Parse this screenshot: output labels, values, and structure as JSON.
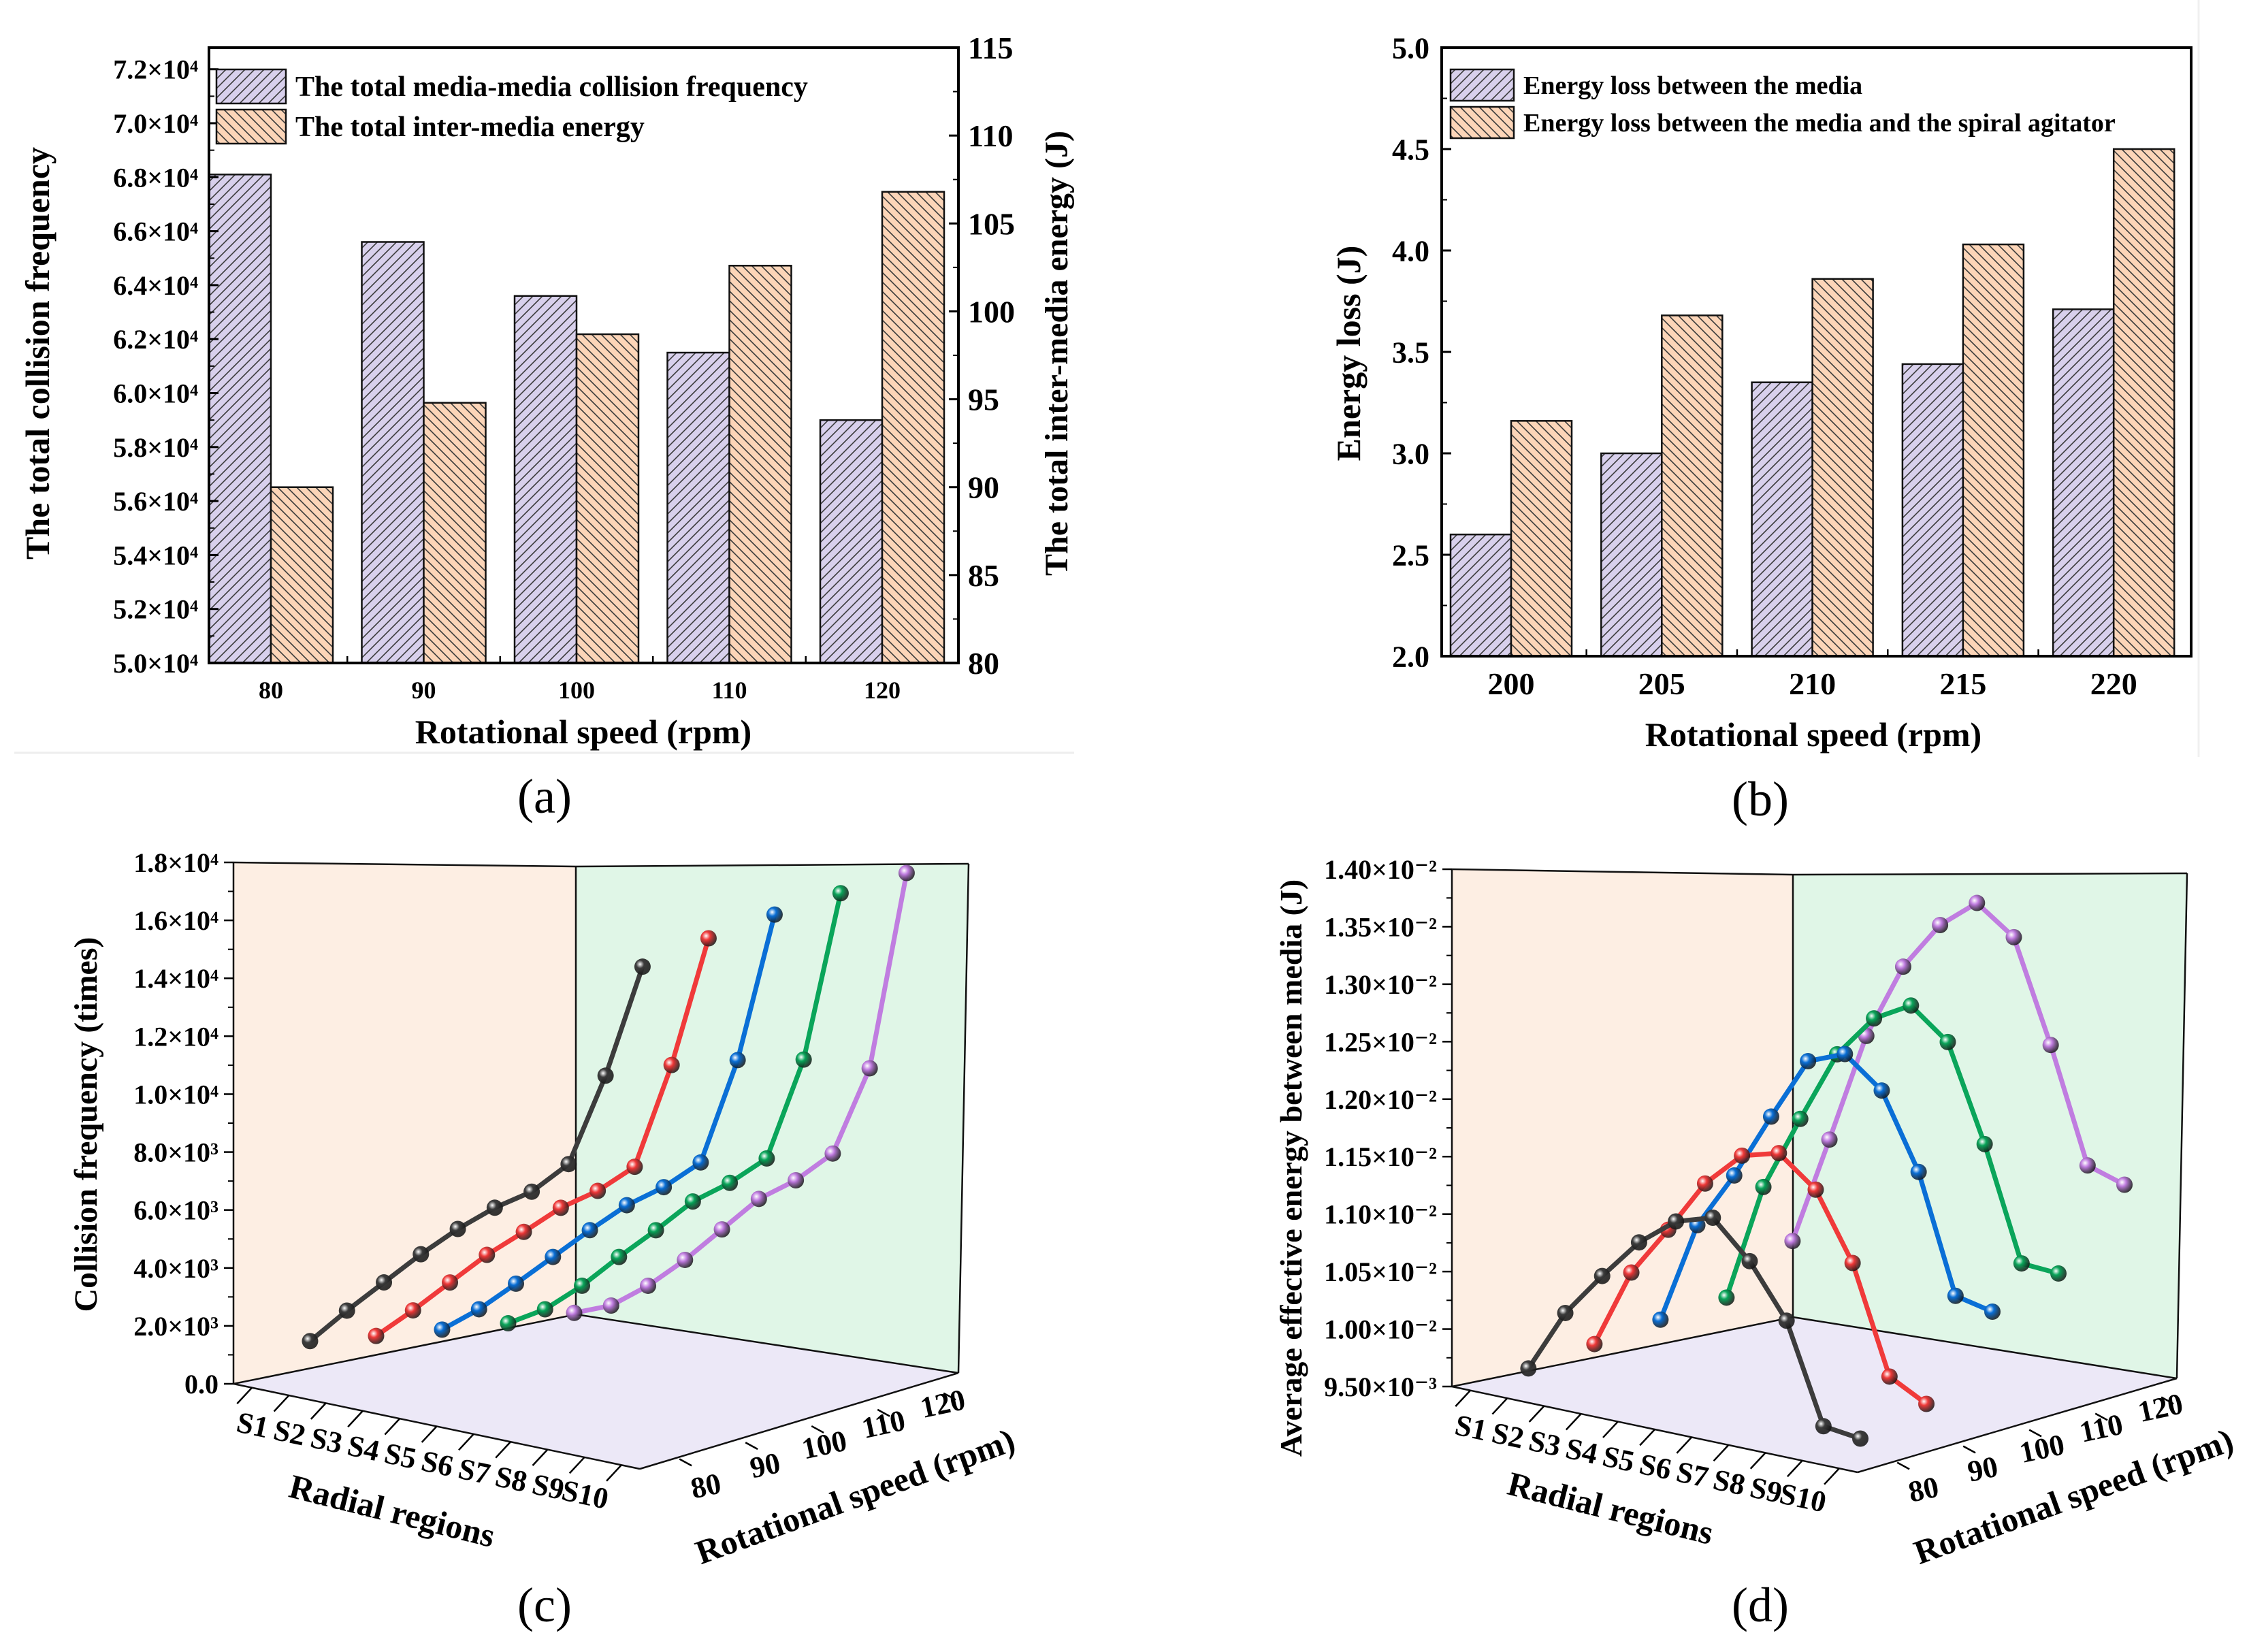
{
  "figure": {
    "panel_labels": [
      "(a)",
      "(b)",
      "(c)",
      "(d)"
    ]
  },
  "chart_data": [
    {
      "type": "bar",
      "categories": [
        "80",
        "90",
        "100",
        "110",
        "120"
      ],
      "xlabel": "Rotational speed (rpm)",
      "ylabel": "The total collision frequency",
      "y2label": "The total inter-media energy (J)",
      "ylim": [
        50000,
        72800
      ],
      "y2lim": [
        80,
        115
      ],
      "yticks": [
        50000,
        52000,
        54000,
        56000,
        58000,
        60000,
        62000,
        64000,
        66000,
        68000,
        70000,
        72000
      ],
      "ytick_labels": [
        "5.0×10⁴",
        "5.2×10⁴",
        "5.4×10⁴",
        "5.6×10⁴",
        "5.8×10⁴",
        "6.0×10⁴",
        "6.2×10⁴",
        "6.4×10⁴",
        "6.6×10⁴",
        "6.8×10⁴",
        "7.0×10⁴",
        "7.2×10⁴"
      ],
      "y2ticks": [
        80,
        85,
        90,
        95,
        100,
        105,
        110,
        115
      ],
      "y2tick_labels": [
        "80",
        "85",
        "90",
        "95",
        "100",
        "105",
        "110",
        "115"
      ],
      "legend_position": "top-left",
      "grid": false,
      "series": [
        {
          "name": "The total media-media collision frequency",
          "axis": "left",
          "color": "#D8D0EC",
          "hatch": "/",
          "values": [
            68100,
            65600,
            63600,
            61500,
            59000
          ]
        },
        {
          "name": "The total inter-media energy",
          "axis": "right",
          "color": "#FCD5B8",
          "hatch": "\\",
          "values": [
            90.0,
            94.8,
            98.7,
            102.6,
            106.8
          ]
        }
      ]
    },
    {
      "type": "bar",
      "categories": [
        "200",
        "205",
        "210",
        "215",
        "220"
      ],
      "xlabel": "Rotational speed (rpm)",
      "ylabel": "Energy loss (J)",
      "ylim": [
        2.0,
        5.0
      ],
      "yticks": [
        2.0,
        2.5,
        3.0,
        3.5,
        4.0,
        4.5,
        5.0
      ],
      "ytick_labels": [
        "2.0",
        "2.5",
        "3.0",
        "3.5",
        "4.0",
        "4.5",
        "5.0"
      ],
      "legend_position": "top-left",
      "grid": false,
      "series": [
        {
          "name": "Energy loss between the media",
          "color": "#D8D0EC",
          "hatch": "/",
          "values": [
            2.6,
            3.0,
            3.35,
            3.44,
            3.71
          ]
        },
        {
          "name": "Energy loss between the media and the spiral agitator",
          "color": "#FCD5B8",
          "hatch": "\\",
          "values": [
            3.16,
            3.68,
            3.86,
            4.03,
            4.5
          ]
        }
      ]
    },
    {
      "type": "line3d",
      "xlabel": "Radial regions",
      "zlabel": "Rotational speed (rpm)",
      "ylabel": "Collision frequency (times)",
      "x_categories": [
        "S1",
        "S2",
        "S3",
        "S4",
        "S5",
        "S6",
        "S7",
        "S8",
        "S9",
        "S10"
      ],
      "z_categories": [
        "80",
        "90",
        "100",
        "110",
        "120"
      ],
      "ylim": [
        0,
        18000
      ],
      "yticks": [
        0,
        2000,
        4000,
        6000,
        8000,
        10000,
        12000,
        14000,
        16000,
        18000
      ],
      "ytick_labels": [
        "0.0",
        "2.0×10³",
        "4.0×10³",
        "6.0×10³",
        "8.0×10³",
        "1.0×10⁴",
        "1.2×10⁴",
        "1.4×10⁴",
        "1.6×10⁴",
        "1.8×10⁴"
      ],
      "wall_colors": {
        "left": "#FDEEE3",
        "right": "#E0F6E7",
        "floor": "#ECE8F7"
      },
      "series": [
        {
          "name": "80",
          "color": "#3C3C3C",
          "values": [
            1400,
            2720,
            3960,
            5200,
            6340,
            7340,
            8160,
            9380,
            12700,
            16730
          ]
        },
        {
          "name": "90",
          "color": "#F03A3A",
          "values": [
            1010,
            2160,
            3390,
            4610,
            5670,
            6770,
            7620,
            8720,
            12500,
            17140
          ]
        },
        {
          "name": "100",
          "color": "#0A6FD6",
          "values": [
            660,
            1630,
            2780,
            3970,
            5160,
            6290,
            7180,
            8300,
            12100,
            17390
          ]
        },
        {
          "name": "110",
          "color": "#0AA55A",
          "values": [
            310,
            1060,
            2140,
            3400,
            4590,
            5850,
            6760,
            7870,
            11550,
            17560
          ]
        },
        {
          "name": "120",
          "color": "#C07DE0",
          "values": [
            100,
            620,
            1570,
            2730,
            4050,
            5370,
            6280,
            7470,
            10680,
            17690
          ]
        }
      ]
    },
    {
      "type": "line3d",
      "xlabel": "Radial regions",
      "zlabel": "Rotational speed (rpm)",
      "ylabel": "Average effective energy between media (J)",
      "x_categories": [
        "S1",
        "S2",
        "S3",
        "S4",
        "S5",
        "S6",
        "S7",
        "S8",
        "S9",
        "S10"
      ],
      "z_categories": [
        "80",
        "90",
        "100",
        "110",
        "120"
      ],
      "ylim": [
        0.0095,
        0.014
      ],
      "yticks": [
        0.0095,
        0.01,
        0.0105,
        0.011,
        0.0115,
        0.012,
        0.0125,
        0.013,
        0.0135,
        0.014
      ],
      "ytick_labels": [
        "9.50×10⁻³",
        "1.00×10⁻²",
        "1.05×10⁻²",
        "1.10×10⁻²",
        "1.15×10⁻²",
        "1.20×10⁻²",
        "1.25×10⁻²",
        "1.30×10⁻²",
        "1.35×10⁻²",
        "1.40×10⁻²"
      ],
      "wall_colors": {
        "left": "#FDEEE3",
        "right": "#E0F6E7",
        "floor": "#ECE8F7"
      },
      "series": [
        {
          "name": "80",
          "color": "#3C3C3C",
          "values": [
            0.00964,
            0.01019,
            0.01058,
            0.01094,
            0.01119,
            0.01129,
            0.01098,
            0.01053,
            0.00968,
            0.00964
          ]
        },
        {
          "name": "90",
          "color": "#F03A3A",
          "values": [
            0.00971,
            0.0104,
            0.01084,
            0.01131,
            0.01162,
            0.01171,
            0.01146,
            0.01089,
            0.00997,
            0.0098
          ]
        },
        {
          "name": "100",
          "color": "#0A6FD6",
          "values": [
            0.00978,
            0.01067,
            0.01117,
            0.01175,
            0.0123,
            0.01243,
            0.01218,
            0.01154,
            0.01053,
            0.01046
          ]
        },
        {
          "name": "110",
          "color": "#0AA55A",
          "values": [
            0.00983,
            0.01086,
            0.01152,
            0.01215,
            0.01253,
            0.01271,
            0.01246,
            0.01164,
            0.01067,
            0.01065
          ]
        },
        {
          "name": "120",
          "color": "#C07DE0",
          "values": [
            0.01018,
            0.01113,
            0.0121,
            0.01277,
            0.0132,
            0.01346,
            0.01323,
            0.01236,
            0.01138,
            0.01128
          ]
        }
      ]
    }
  ]
}
